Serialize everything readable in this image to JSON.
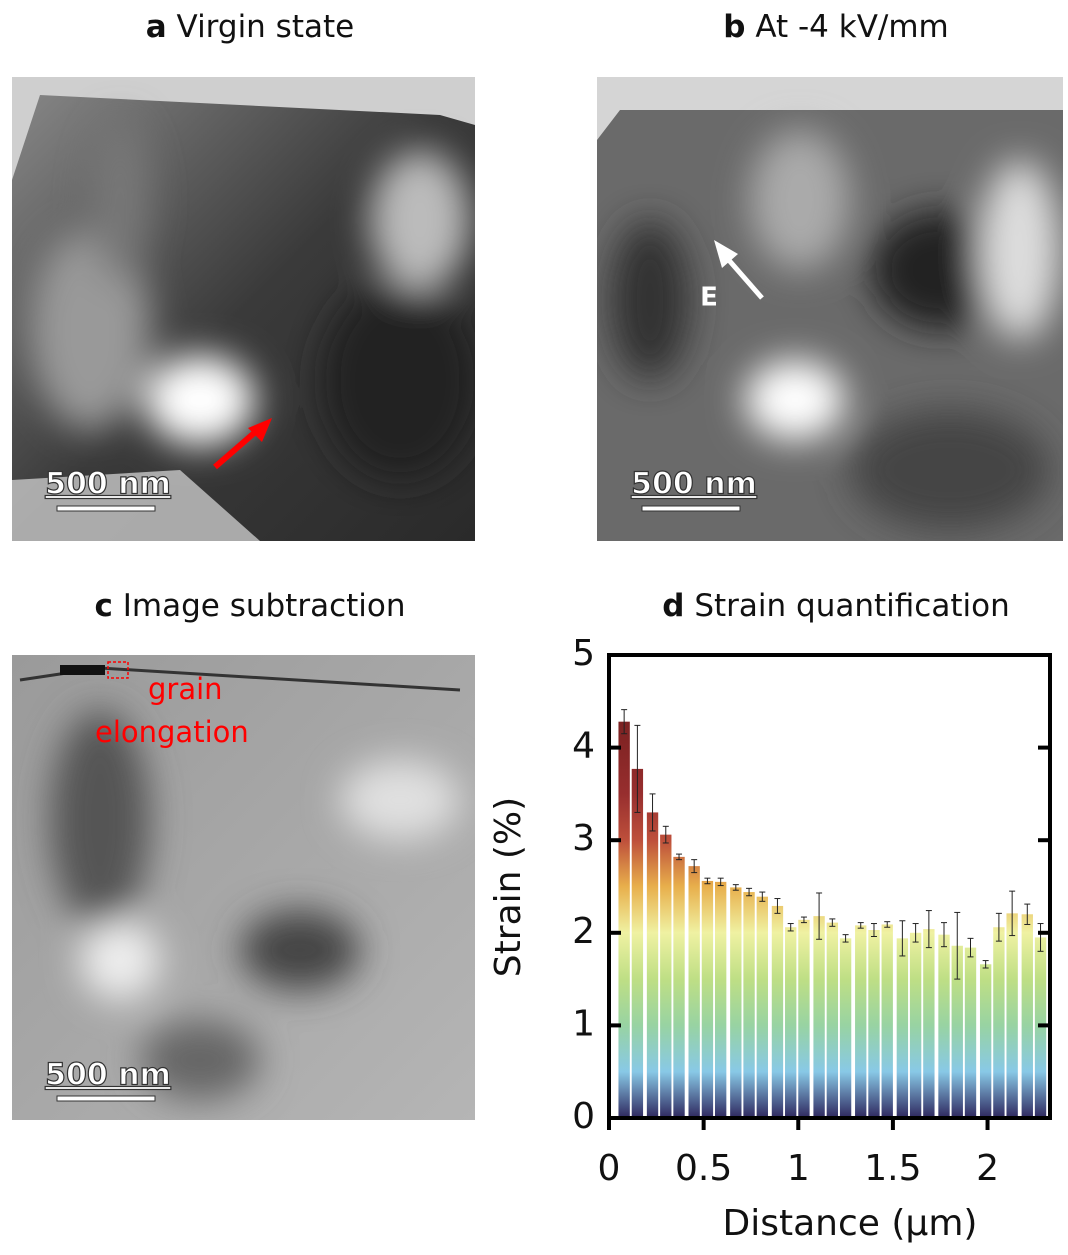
{
  "panels": [
    {
      "letter": "a",
      "title": "Virgin state",
      "scale_bar": "500 nm"
    },
    {
      "letter": "b",
      "title": "At -4 kV/mm",
      "scale_bar": "500 nm",
      "annotation": "E"
    },
    {
      "letter": "c",
      "title": "Image subtraction",
      "scale_bar": "500 nm",
      "annotation": [
        "grain",
        "elongation"
      ]
    }
  ],
  "chart_data": {
    "type": "bar",
    "letter": "d",
    "title": "Strain quantification",
    "x_label": "Distance (μm)",
    "y_label": "Strain (%)",
    "x": [
      0.08,
      0.15,
      0.23,
      0.3,
      0.37,
      0.45,
      0.52,
      0.59,
      0.67,
      0.74,
      0.81,
      0.89,
      0.96,
      1.03,
      1.11,
      1.18,
      1.25,
      1.33,
      1.4,
      1.47,
      1.55,
      1.62,
      1.69,
      1.77,
      1.84,
      1.91,
      1.99,
      2.06,
      2.13,
      2.21,
      2.28
    ],
    "values": [
      4.28,
      3.77,
      3.3,
      3.06,
      2.82,
      2.72,
      2.56,
      2.55,
      2.49,
      2.44,
      2.39,
      2.29,
      2.06,
      2.14,
      2.18,
      2.11,
      1.94,
      2.08,
      2.03,
      2.09,
      1.94,
      2.0,
      2.04,
      1.98,
      1.86,
      1.84,
      1.66,
      2.06,
      2.21,
      2.2,
      1.95
    ],
    "errors": [
      0.13,
      0.47,
      0.2,
      0.09,
      0.03,
      0.07,
      0.03,
      0.04,
      0.03,
      0.04,
      0.05,
      0.08,
      0.04,
      0.03,
      0.25,
      0.04,
      0.04,
      0.03,
      0.07,
      0.03,
      0.19,
      0.1,
      0.2,
      0.13,
      0.36,
      0.1,
      0.04,
      0.15,
      0.24,
      0.11,
      0.15
    ],
    "colormap": [
      "#1c1450",
      "#7ec4e4",
      "#8fcf9a",
      "#b9dc7a",
      "#eef09a",
      "#e6a83c",
      "#b8402a",
      "#8e1c1c",
      "#7a1212",
      "#6a0e0e",
      "#600c0c"
    ],
    "xlim": [
      0,
      2.33
    ],
    "ylim": [
      0,
      5
    ],
    "xticks": [
      0,
      0.5,
      1,
      1.5,
      2
    ],
    "yticks": [
      0,
      1,
      2,
      3,
      4,
      5
    ]
  }
}
